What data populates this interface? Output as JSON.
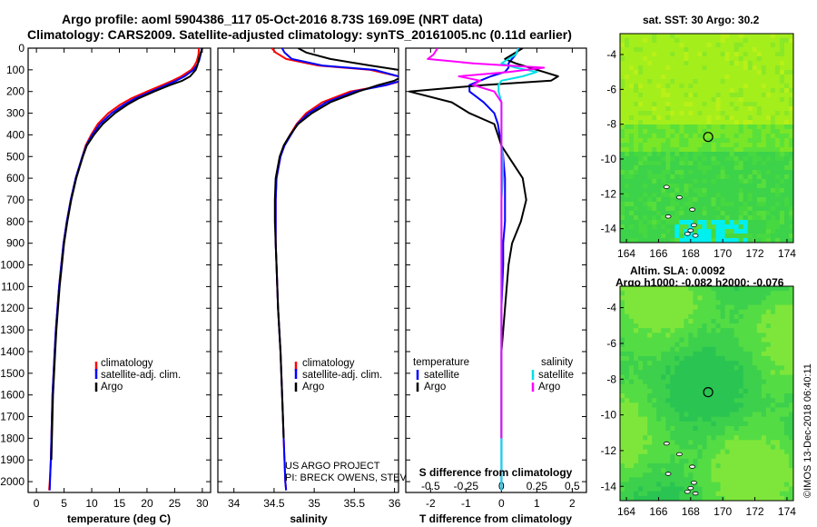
{
  "title": {
    "line1": "Argo profile: aoml 5904386_117 05-Oct-2016 8.73S 169.09E (NRT data)",
    "line2": "Climatology: CARS2009. Satellite-adjusted climatology: synTS_20161005.nc (0.11d earlier)"
  },
  "colors": {
    "climatology": "#ff0000",
    "satellite": "#0000ff",
    "argo": "#000000",
    "satellite_salinity": "#00e0e8",
    "argo_salinity": "#ff00ff"
  },
  "depth_axis": {
    "ticks": [
      0,
      100,
      200,
      300,
      400,
      500,
      600,
      700,
      800,
      900,
      1000,
      1100,
      1200,
      1300,
      1400,
      1500,
      1600,
      1700,
      1800,
      1900,
      2000
    ],
    "range": [
      0,
      2050
    ]
  },
  "chart_data": [
    {
      "type": "line",
      "name": "temperature",
      "xlabel": "temperature (deg C)",
      "xlim": [
        -1.5,
        31.5
      ],
      "xticks": [
        0,
        5,
        10,
        15,
        20,
        25,
        30
      ],
      "y": [
        0,
        30,
        60,
        80,
        100,
        130,
        150,
        170,
        200,
        230,
        260,
        300,
        350,
        400,
        450,
        500,
        600,
        700,
        800,
        900,
        1000,
        1100,
        1200,
        1300,
        1400,
        1500,
        1600,
        1700,
        1800,
        1900,
        2000,
        2040
      ],
      "series": [
        {
          "name": "climatology",
          "values": [
            29.4,
            29.3,
            29.0,
            28.6,
            28.0,
            26.2,
            24.6,
            22.8,
            20.0,
            17.3,
            15.2,
            13.0,
            11.1,
            9.9,
            8.9,
            8.3,
            7.1,
            6.2,
            5.5,
            4.9,
            4.5,
            4.1,
            3.8,
            3.5,
            3.3,
            3.1,
            2.9,
            2.8,
            2.7,
            2.6,
            2.4,
            2.3
          ]
        },
        {
          "name": "satellite-adj. clim.",
          "values": [
            29.9,
            29.7,
            29.4,
            29.0,
            28.4,
            26.8,
            25.3,
            23.5,
            20.8,
            18.0,
            15.9,
            13.6,
            11.5,
            10.1,
            9.0,
            8.3,
            7.1,
            6.2,
            5.5,
            4.9,
            4.5,
            4.1,
            3.8,
            3.5,
            3.3,
            3.1,
            2.9,
            2.8,
            2.7,
            2.6,
            2.45,
            2.4
          ]
        },
        {
          "name": "Argo",
          "values": [
            30.0,
            29.6,
            29.3,
            29.1,
            28.8,
            27.8,
            26.4,
            24.2,
            21.3,
            18.6,
            16.5,
            14.2,
            12.0,
            10.4,
            9.1,
            8.4,
            7.2,
            6.3,
            5.6,
            5.0,
            4.6,
            4.2,
            3.9,
            3.6,
            3.4,
            3.2,
            3.0,
            2.9,
            2.8,
            2.7
          ]
        }
      ],
      "legend": [
        "climatology",
        "satellite-adj. clim.",
        "Argo"
      ]
    },
    {
      "type": "line",
      "name": "salinity",
      "xlabel": "salinity",
      "xlim": [
        33.8,
        36.05
      ],
      "xticks": [
        34,
        34.5,
        35,
        35.5,
        36
      ],
      "xticklabels": [
        "34",
        "34.5",
        "35",
        "35.5",
        "36"
      ],
      "y": [
        0,
        20,
        50,
        80,
        100,
        130,
        150,
        170,
        200,
        250,
        300,
        350,
        400,
        450,
        500,
        600,
        700,
        800,
        900,
        1000,
        1200,
        1400,
        1600,
        1800,
        2000,
        2040
      ],
      "series": [
        {
          "name": "climatology",
          "values": [
            34.47,
            34.52,
            34.65,
            35.05,
            35.7,
            36.05,
            36.1,
            35.9,
            35.45,
            35.1,
            34.9,
            34.78,
            34.7,
            34.62,
            34.58,
            34.53,
            34.52,
            34.52,
            34.52,
            34.53,
            34.55,
            34.58,
            34.6,
            34.62,
            34.64,
            34.65
          ]
        },
        {
          "name": "satellite-adj. clim.",
          "values": [
            34.6,
            34.63,
            34.72,
            35.1,
            35.75,
            36.05,
            36.08,
            35.9,
            35.5,
            35.15,
            34.93,
            34.79,
            34.71,
            34.63,
            34.58,
            34.53,
            34.52,
            34.52,
            34.52,
            34.53,
            34.55,
            34.58,
            34.6,
            34.62,
            34.64,
            34.65
          ]
        },
        {
          "name": "Argo",
          "values": [
            34.8,
            34.9,
            35.2,
            35.7,
            36.05,
            36.1,
            36.0,
            35.8,
            35.55,
            35.2,
            34.97,
            34.8,
            34.7,
            34.62,
            34.57,
            34.52,
            34.51,
            34.51,
            34.52,
            34.53,
            34.55,
            34.58,
            34.6,
            34.62
          ]
        }
      ],
      "legend": [
        "climatology",
        "satellite-adj. clim.",
        "Argo"
      ],
      "annotation": [
        "US ARGO PROJECT",
        "PI: BRECK OWENS, STEVE JAYNE, P.E. ROBBINS"
      ]
    },
    {
      "type": "line",
      "name": "differences",
      "xlabel": "T difference from climatology",
      "xlabel2": "S difference from climatology",
      "xlim": [
        -2.7,
        2.4
      ],
      "xticks": [
        -2,
        -1,
        0,
        1,
        2
      ],
      "xticklabels": [
        "-2",
        "-1",
        "0",
        "1",
        "2"
      ],
      "s_xticks": [
        -0.5,
        -0.25,
        0,
        0.25,
        0.5
      ],
      "s_xticklabels": [
        "-0.5",
        "-0.25",
        "0",
        "0.25",
        "0.5"
      ],
      "y": [
        0,
        30,
        50,
        70,
        90,
        110,
        130,
        150,
        170,
        200,
        250,
        300,
        350,
        400,
        450,
        500,
        600,
        700,
        800,
        900,
        1000,
        1200,
        1400,
        1600,
        1800,
        1950,
        2040
      ],
      "series": [
        {
          "name": "temperature satellite",
          "quantity": "T",
          "values": [
            0.5,
            0.4,
            0.3,
            0.2,
            0.2,
            0.1,
            -0.3,
            -0.6,
            -0.9,
            -0.9,
            -0.5,
            -0.2,
            -0.1,
            -0.05,
            0.0,
            0.05,
            0.1,
            0.1,
            0.1,
            0.05,
            0.05,
            0.0,
            0.0,
            0.0,
            0.0,
            0.0,
            0.0
          ]
        },
        {
          "name": "temperature Argo",
          "quantity": "T",
          "values": [
            0.6,
            0.3,
            0.1,
            0.4,
            0.8,
            1.2,
            1.6,
            1.4,
            -0.5,
            -2.6,
            -1.4,
            -0.9,
            -0.2,
            -0.1,
            0.0,
            0.2,
            0.6,
            0.7,
            0.55,
            0.3,
            0.2,
            0.1,
            0.0,
            0.0,
            0.0
          ]
        },
        {
          "name": "salinity satellite",
          "quantity": "S",
          "values": [
            0.12,
            0.1,
            0.05,
            0.0,
            0.1,
            0.25,
            0.15,
            0.0,
            -0.02,
            -0.02,
            0.0,
            0.0,
            0.0,
            0.0,
            0.0,
            0.01,
            0.01,
            0.0,
            0.0,
            0.0,
            0.0,
            0.0,
            0.0,
            0.0,
            0.0,
            0.0,
            0.0
          ]
        },
        {
          "name": "salinity Argo",
          "quantity": "S",
          "values": [
            -0.45,
            -0.48,
            -0.52,
            -0.2,
            0.3,
            0.05,
            -0.3,
            -0.15,
            -0.2,
            -0.05,
            0.0,
            0.0,
            0.0,
            0.0,
            0.0,
            0.0,
            0.0,
            0.0,
            0.0,
            0.0,
            0.0,
            0.0,
            0.0,
            0.0,
            0.0
          ]
        }
      ],
      "legend_temperature": {
        "title": "temperature",
        "items": [
          "satellite",
          "Argo"
        ]
      },
      "legend_salinity": {
        "title": "salinity",
        "items": [
          "satellite",
          "Argo"
        ]
      }
    },
    {
      "type": "heatmap",
      "name": "sst-map",
      "title": "sat. SST: 30 Argo: 30.2",
      "xlim": [
        163.6,
        174.4
      ],
      "ylim": [
        -14.8,
        -2.8
      ],
      "xticks": [
        164,
        166,
        168,
        170,
        172,
        174
      ],
      "yticks": [
        -4,
        -6,
        -8,
        -10,
        -12,
        -14
      ],
      "argo_position": {
        "lon": 169.09,
        "lat": -8.73
      }
    },
    {
      "type": "heatmap",
      "name": "sla-map",
      "title": "Altim. SLA: 0.0092",
      "subtitle": "Argo h1000: -0.082 h2000: -0.076",
      "xlim": [
        163.6,
        174.4
      ],
      "ylim": [
        -14.8,
        -2.8
      ],
      "xticks": [
        164,
        166,
        168,
        170,
        172,
        174
      ],
      "yticks": [
        -4,
        -6,
        -8,
        -10,
        -12,
        -14
      ],
      "argo_position": {
        "lon": 169.09,
        "lat": -8.73
      }
    }
  ],
  "footer": {
    "stamp": "©IMOS 13-Dec-2018 06:40:11"
  }
}
